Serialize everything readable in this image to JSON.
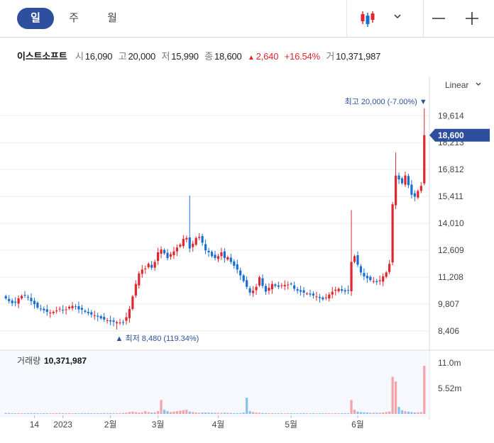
{
  "tabs": [
    {
      "label": "일",
      "active": true
    },
    {
      "label": "주",
      "active": false
    },
    {
      "label": "월",
      "active": false
    }
  ],
  "controls": {
    "chart_type_icon": "candlestick-icon",
    "dropdown_icon": "chevron-down-icon",
    "zoom_out_icon": "minus-icon",
    "zoom_in_icon": "plus-icon"
  },
  "quote": {
    "name": "이스트소프트",
    "open_label": "시",
    "open": "16,090",
    "high_label": "고",
    "high": "20,000",
    "low_label": "저",
    "low": "15,990",
    "close_label": "종",
    "close": "18,600",
    "change_arrow": "▲",
    "change": "2,640",
    "change_pct": "+16.54%",
    "volume_label": "거",
    "volume": "10,371,987"
  },
  "scale_mode": "Linear",
  "colors": {
    "up": "#e0262e",
    "down": "#1a6fd3",
    "accent": "#2d4f9e",
    "vol_up": "#f3a4a8",
    "vol_down": "#86c2ee"
  },
  "chart_data": {
    "type": "candlestick",
    "y_ticks": [
      "19,614",
      "18,213",
      "16,812",
      "15,411",
      "14,010",
      "12,609",
      "11,208",
      "9,807",
      "8,406"
    ],
    "ylim": [
      7700,
      20400
    ],
    "x_labels": [
      "14",
      "2023",
      "2월",
      "3월",
      "4월",
      "5월",
      "6월"
    ],
    "current_price": "18,600",
    "high_annotation": {
      "label": "최고",
      "value": "20,000",
      "pct": "(-7.00%)"
    },
    "low_annotation": {
      "label": "최저",
      "value": "8,480",
      "pct": "(119.34%)"
    },
    "volume_label": "거래량",
    "volume_value": "10,371,987",
    "volume_ticks": [
      "11.0m",
      "5.52m"
    ],
    "volume_max": 11000000,
    "closes": [
      10100,
      9960,
      9850,
      9880,
      10100,
      10230,
      10250,
      10150,
      9950,
      9800,
      9620,
      9560,
      9480,
      9400,
      9360,
      9400,
      9470,
      9560,
      9500,
      9530,
      9660,
      9710,
      9670,
      9530,
      9510,
      9400,
      9330,
      9260,
      9220,
      9150,
      9060,
      9000,
      8960,
      8900,
      8880,
      8860,
      8840,
      8860,
      9120,
      9550,
      10200,
      10850,
      11400,
      11600,
      11650,
      11900,
      11700,
      12000,
      12500,
      12650,
      12450,
      12200,
      12400,
      12550,
      12750,
      12900,
      13200,
      13250,
      12700,
      12950,
      13250,
      13300,
      13000,
      12600,
      12500,
      12300,
      12200,
      12300,
      12500,
      12200,
      12250,
      12000,
      11800,
      11600,
      11300,
      11000,
      10700,
      10400,
      10500,
      10700,
      11200,
      10750,
      10450,
      10650,
      10850,
      10750,
      10700,
      10780,
      10800,
      10820,
      10850,
      10600,
      10500,
      10450,
      10400,
      10350,
      10300,
      10250,
      10200,
      10120,
      10050,
      10150,
      10300,
      10450,
      10550,
      10600,
      10500,
      10460,
      10520,
      12000,
      12300,
      11850,
      11450,
      11250,
      11150,
      11050,
      11000,
      10950,
      11050,
      11250,
      11450,
      11900,
      15000,
      16500,
      16300,
      16100,
      16500,
      16000,
      15500,
      15400,
      15700,
      15960,
      18600
    ],
    "volumes": [
      200000,
      180000,
      160000,
      150000,
      170000,
      150000,
      140000,
      150000,
      160000,
      180000,
      150000,
      140000,
      160000,
      150000,
      170000,
      150000,
      160000,
      200000,
      150000,
      140000,
      180000,
      150000,
      160000,
      150000,
      170000,
      160000,
      150000,
      160000,
      150000,
      140000,
      160000,
      200000,
      180000,
      160000,
      150000,
      170000,
      160000,
      200000,
      300000,
      400000,
      500000,
      400000,
      300000,
      350000,
      600000,
      400000,
      300000,
      350000,
      600000,
      3000000,
      900000,
      600000,
      400000,
      500000,
      600000,
      700000,
      800000,
      900000,
      500000,
      400000,
      300000,
      250000,
      300000,
      300000,
      280000,
      260000,
      240000,
      220000,
      230000,
      250000,
      240000,
      200000,
      180000,
      160000,
      170000,
      300000,
      3500000,
      600000,
      400000,
      300000,
      250000,
      200000,
      180000,
      160000,
      150000,
      140000,
      150000,
      160000,
      140000,
      130000,
      150000,
      140000,
      130000,
      150000,
      160000,
      140000,
      130000,
      150000,
      140000,
      130000,
      150000,
      160000,
      140000,
      130000,
      150000,
      140000,
      150000,
      160000,
      150000,
      3000000,
      900000,
      500000,
      400000,
      350000,
      300000,
      250000,
      260000,
      240000,
      250000,
      300000,
      400000,
      500000,
      8000000,
      7000000,
      1500000,
      800000,
      600000,
      500000,
      400000,
      300000,
      350000,
      400000,
      10371987
    ]
  }
}
